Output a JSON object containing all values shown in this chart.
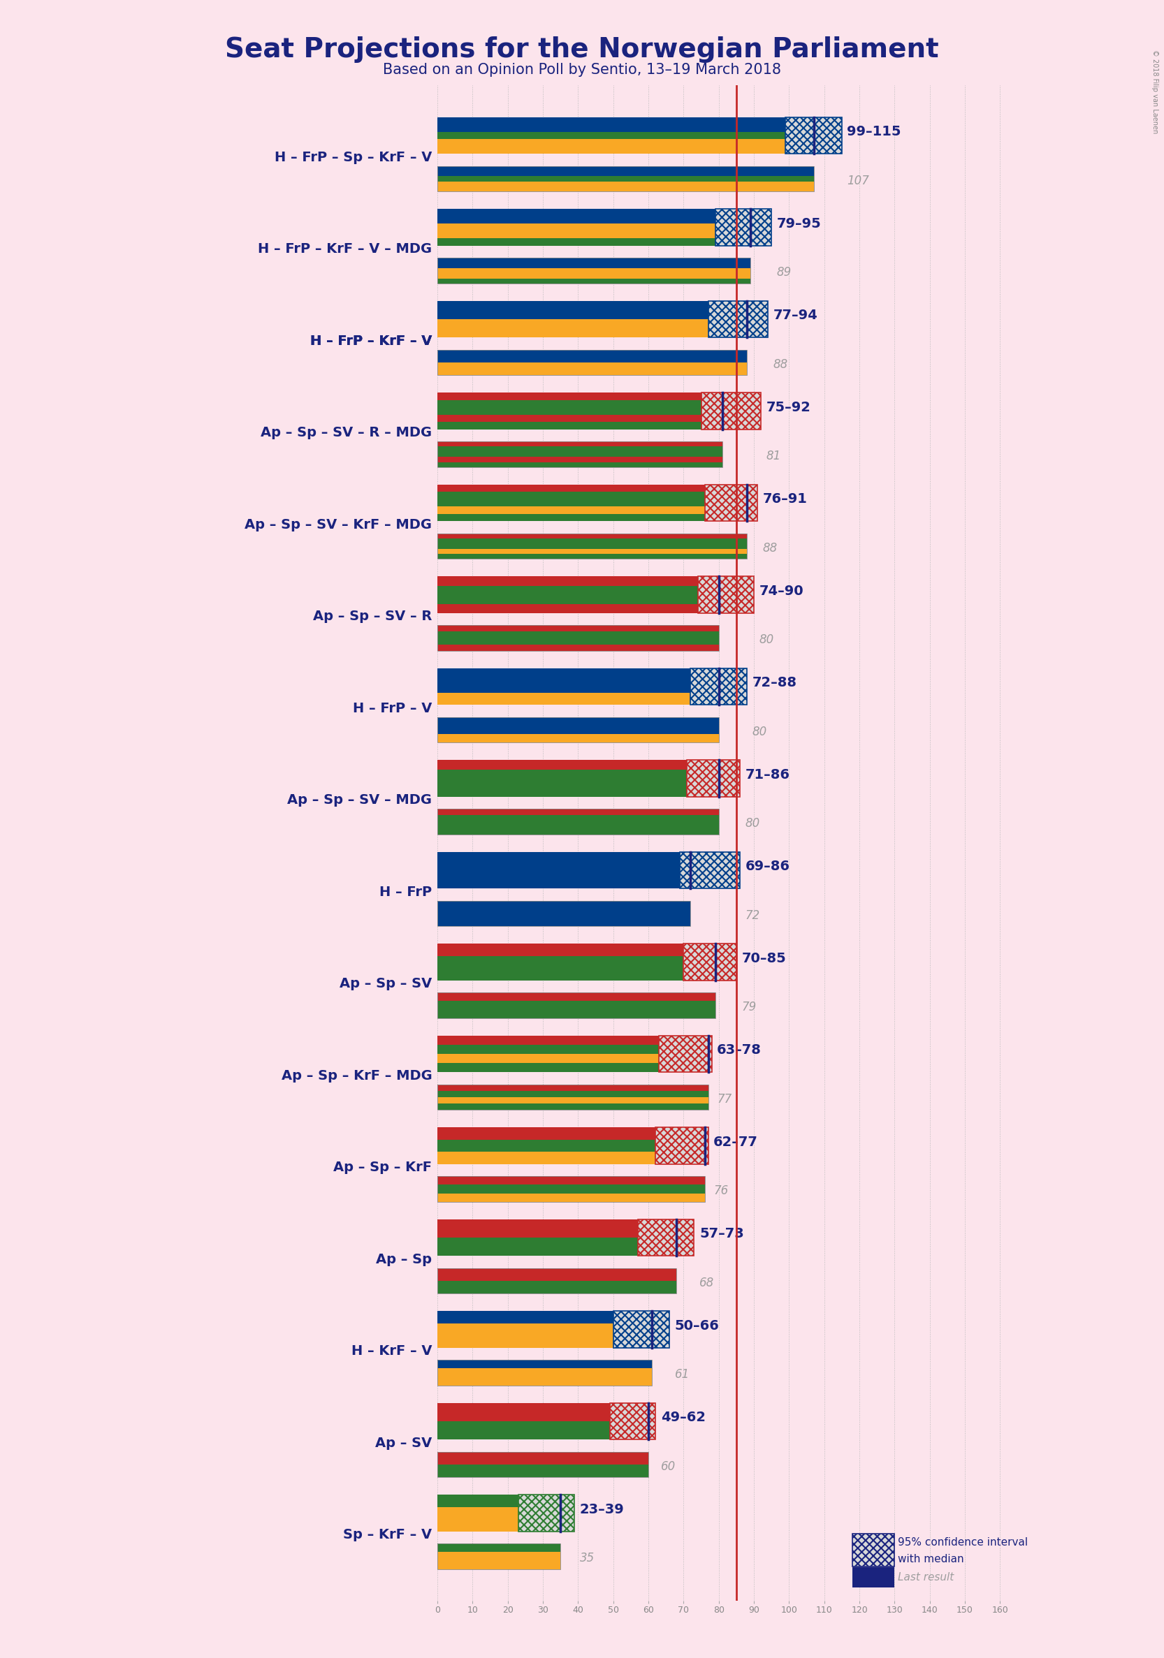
{
  "title": "Seat Projections for the Norwegian Parliament",
  "subtitle": "Based on an Opinion Poll by Sentio, 13–19 March 2018",
  "background_color": "#fce4ec",
  "title_color": "#1a237e",
  "subtitle_color": "#1a237e",
  "copyright": "© 2018 Filip van Laenen",
  "coalitions": [
    {
      "label": "H – FrP – Sp – KrF – V",
      "range": "99–115",
      "median": 107,
      "ci_low": 99,
      "ci_high": 115,
      "last": 107,
      "underline": false
    },
    {
      "label": "H – FrP – KrF – V – MDG",
      "range": "79–95",
      "median": 89,
      "ci_low": 79,
      "ci_high": 95,
      "last": 89,
      "underline": false
    },
    {
      "label": "H – FrP – KrF – V",
      "range": "77–94",
      "median": 88,
      "ci_low": 77,
      "ci_high": 94,
      "last": 88,
      "underline": true
    },
    {
      "label": "Ap – Sp – SV – R – MDG",
      "range": "75–92",
      "median": 81,
      "ci_low": 75,
      "ci_high": 92,
      "last": 81,
      "underline": false
    },
    {
      "label": "Ap – Sp – SV – KrF – MDG",
      "range": "76–91",
      "median": 88,
      "ci_low": 76,
      "ci_high": 91,
      "last": 88,
      "underline": false
    },
    {
      "label": "Ap – Sp – SV – R",
      "range": "74–90",
      "median": 80,
      "ci_low": 74,
      "ci_high": 90,
      "last": 80,
      "underline": false
    },
    {
      "label": "H – FrP – V",
      "range": "72–88",
      "median": 80,
      "ci_low": 72,
      "ci_high": 88,
      "last": 80,
      "underline": false
    },
    {
      "label": "Ap – Sp – SV – MDG",
      "range": "71–86",
      "median": 80,
      "ci_low": 71,
      "ci_high": 86,
      "last": 80,
      "underline": false
    },
    {
      "label": "H – FrP",
      "range": "69–86",
      "median": 72,
      "ci_low": 69,
      "ci_high": 86,
      "last": 72,
      "underline": false
    },
    {
      "label": "Ap – Sp – SV",
      "range": "70–85",
      "median": 79,
      "ci_low": 70,
      "ci_high": 85,
      "last": 79,
      "underline": false
    },
    {
      "label": "Ap – Sp – KrF – MDG",
      "range": "63–78",
      "median": 77,
      "ci_low": 63,
      "ci_high": 78,
      "last": 77,
      "underline": false
    },
    {
      "label": "Ap – Sp – KrF",
      "range": "62–77",
      "median": 76,
      "ci_low": 62,
      "ci_high": 77,
      "last": 76,
      "underline": false
    },
    {
      "label": "Ap – Sp",
      "range": "57–73",
      "median": 68,
      "ci_low": 57,
      "ci_high": 73,
      "last": 68,
      "underline": false
    },
    {
      "label": "H – KrF – V",
      "range": "50–66",
      "median": 61,
      "ci_low": 50,
      "ci_high": 66,
      "last": 61,
      "underline": false
    },
    {
      "label": "Ap – SV",
      "range": "49–62",
      "median": 60,
      "ci_low": 49,
      "ci_high": 62,
      "last": 60,
      "underline": false
    },
    {
      "label": "Sp – KrF – V",
      "range": "23–39",
      "median": 35,
      "ci_low": 23,
      "ci_high": 39,
      "last": 35,
      "underline": false
    }
  ],
  "detailed_colors": [
    [
      "#003f8a",
      "#003f8a",
      "#2e7d32",
      "#f9a825",
      "#f9a825"
    ],
    [
      "#003f8a",
      "#003f8a",
      "#f9a825",
      "#f9a825",
      "#2e7d32"
    ],
    [
      "#003f8a",
      "#003f8a",
      "#f9a825",
      "#f9a825"
    ],
    [
      "#c62828",
      "#2e7d32",
      "#2e7d32",
      "#c62828",
      "#2e7d32"
    ],
    [
      "#c62828",
      "#2e7d32",
      "#2e7d32",
      "#f9a825",
      "#2e7d32"
    ],
    [
      "#c62828",
      "#2e7d32",
      "#2e7d32",
      "#c62828"
    ],
    [
      "#003f8a",
      "#003f8a",
      "#f9a825"
    ],
    [
      "#c62828",
      "#2e7d32",
      "#2e7d32",
      "#2e7d32"
    ],
    [
      "#003f8a",
      "#003f8a"
    ],
    [
      "#c62828",
      "#2e7d32",
      "#2e7d32"
    ],
    [
      "#c62828",
      "#2e7d32",
      "#f9a825",
      "#2e7d32"
    ],
    [
      "#c62828",
      "#2e7d32",
      "#f9a825"
    ],
    [
      "#c62828",
      "#2e7d32"
    ],
    [
      "#003f8a",
      "#f9a825",
      "#f9a825"
    ],
    [
      "#c62828",
      "#2e7d32"
    ],
    [
      "#2e7d32",
      "#f9a825",
      "#f9a825"
    ]
  ],
  "x_min": 0,
  "x_max": 169,
  "majority_line": 85,
  "range_color": "#1a237e",
  "median_color": "#9e9e9e",
  "ci_bar_color": "#1a237e",
  "vertical_line_color": "#c62828"
}
